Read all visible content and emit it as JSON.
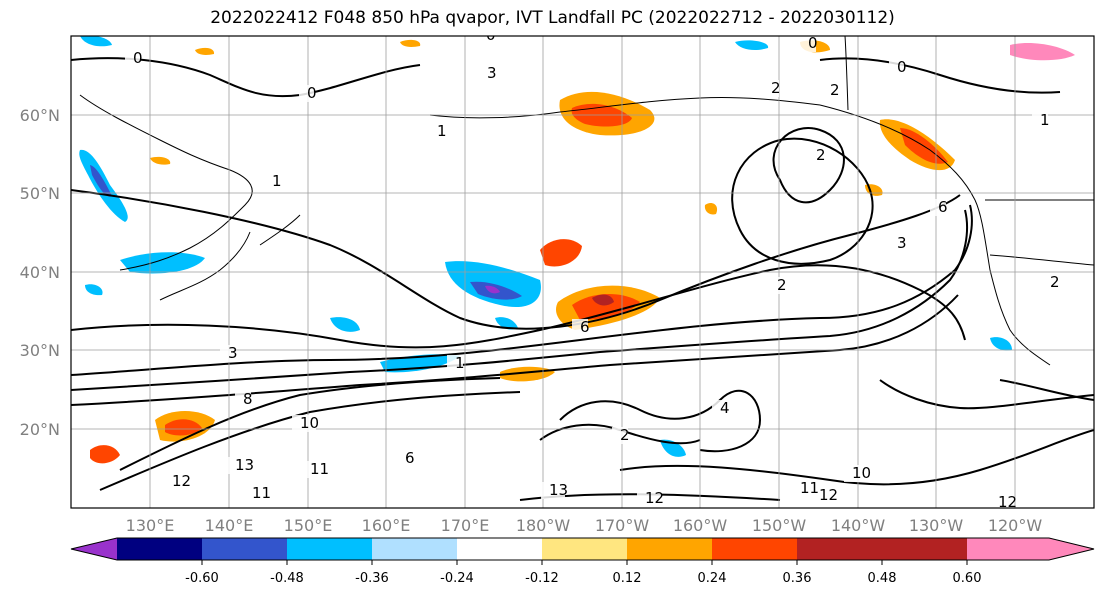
{
  "title": "2022022412 F048 850 hPa qvapor, IVT Landfall PC (2022022712 - 2022030112)",
  "lat_labels": [
    "60°N",
    "50°N",
    "40°N",
    "30°N",
    "20°N"
  ],
  "lon_labels": [
    "130°E",
    "140°E",
    "150°E",
    "160°E",
    "170°E",
    "180°W",
    "170°W",
    "160°W",
    "150°W",
    "140°W",
    "130°W",
    "120°W"
  ],
  "colorbar": {
    "colors": [
      "#9932cc",
      "#000080",
      "#3355cc",
      "#00bfff",
      "#b0e0ff",
      "#ffffff",
      "#ffe680",
      "#ffa500",
      "#ff4500",
      "#b22222",
      "#ff88bb"
    ],
    "tick_labels": [
      "-0.60",
      "-0.48",
      "-0.36",
      "-0.24",
      "-0.12",
      "0.12",
      "0.24",
      "0.36",
      "0.48",
      "0.60"
    ]
  },
  "contour_labels": [
    "0",
    "0",
    "0",
    "0",
    "0",
    "2",
    "2",
    "2",
    "1",
    "1",
    "1",
    "3",
    "3",
    "3",
    "6",
    "6",
    "2",
    "2",
    "1",
    "8",
    "10",
    "13",
    "12",
    "11",
    "11",
    "12",
    "13",
    "12",
    "10",
    "11",
    "12",
    "4",
    "2",
    "6"
  ]
}
